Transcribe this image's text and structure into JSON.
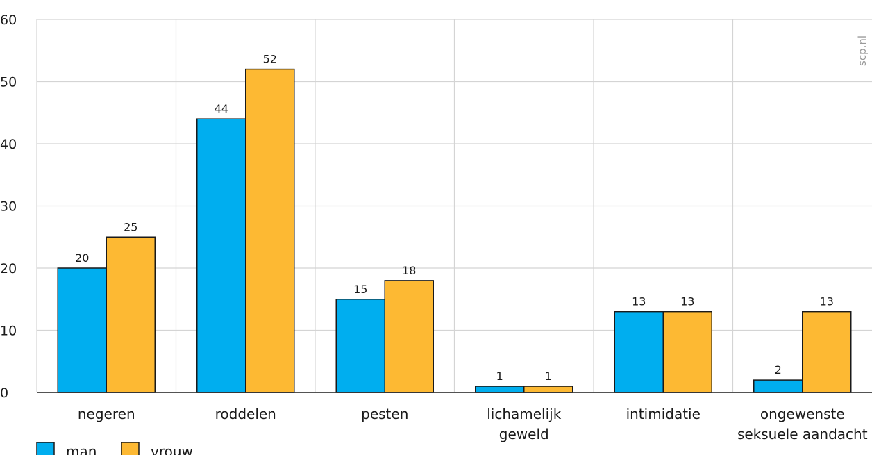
{
  "watermark": "scp.nl",
  "chart_data": {
    "type": "bar",
    "categories": [
      [
        "negeren"
      ],
      [
        "roddelen"
      ],
      [
        "pesten"
      ],
      [
        "lichamelijk",
        "geweld"
      ],
      [
        "intimidatie"
      ],
      [
        "ongewenste",
        "seksuele aandacht"
      ]
    ],
    "series": [
      {
        "name": "man",
        "color": "#00aeef",
        "values": [
          20,
          44,
          15,
          1,
          13,
          2
        ]
      },
      {
        "name": "vrouw",
        "color": "#fdb933",
        "values": [
          25,
          52,
          18,
          1,
          13,
          13
        ]
      }
    ],
    "ylim": [
      0,
      60
    ],
    "yticks": [
      0,
      10,
      20,
      30,
      40,
      50,
      60
    ],
    "grid": true,
    "legend_position": "bottom-left"
  }
}
